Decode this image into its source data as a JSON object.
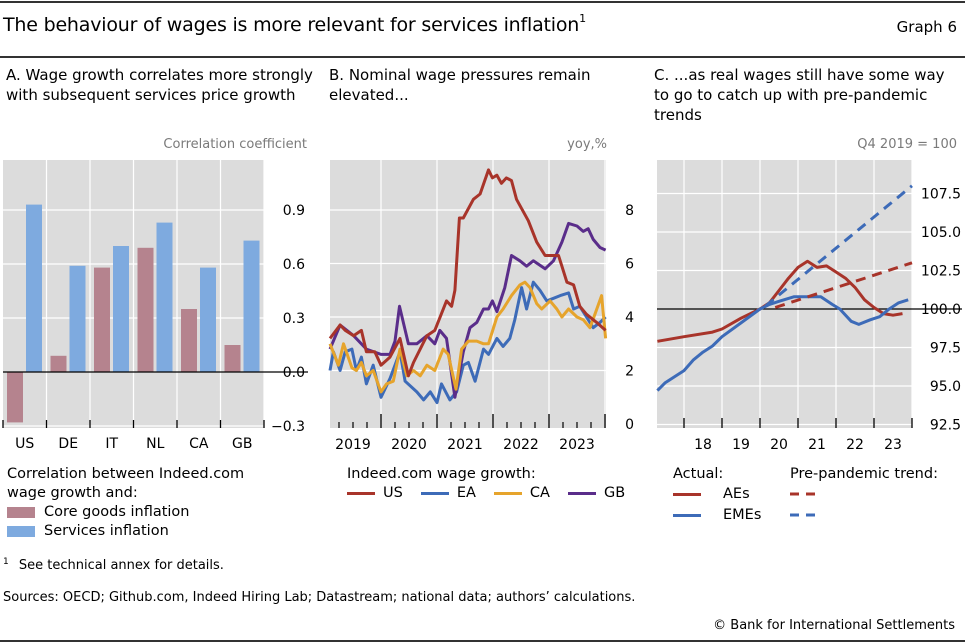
{
  "header": {
    "title": "The behaviour of wages is more relevant for services inflation",
    "title_footnote_mark": "1",
    "graph_number": "Graph 6"
  },
  "panels": {
    "a": {
      "title": "A. Wage growth correlates more strongly with subsequent services price growth",
      "unit": "Correlation coefficient",
      "legend_heading": "Correlation between Indeed.com wage growth and:",
      "legend_items": [
        "Core goods inflation",
        "Services inflation"
      ]
    },
    "b": {
      "title": "B. Nominal wage pressures remain elevated...",
      "unit": "yoy,%",
      "legend_heading": "Indeed.com wage growth:",
      "legend_items": [
        "US",
        "EA",
        "CA",
        "GB"
      ]
    },
    "c": {
      "title": "C. ...as real wages still have some way to go to catch up with pre-pandemic trends",
      "unit": "Q4 2019 = 100",
      "legend_actual_heading": "Actual:",
      "legend_trend_heading": "Pre-pandemic trend:",
      "legend_items": [
        "AEs",
        "EMEs"
      ]
    }
  },
  "footer": {
    "footnote_mark": "1",
    "footnote": "See technical annex for details.",
    "sources": "Sources: OECD; Github.com, Indeed Hiring Lab; Datastream; national data; authors’ calculations.",
    "copyright": "© Bank for International Settlements"
  },
  "colors": {
    "core_goods": "#b5838e",
    "services": "#7eaadf",
    "us": "#a8342a",
    "ea": "#3d6bb8",
    "ca": "#e6a42c",
    "gb": "#5a2d8a",
    "aes": "#a8342a",
    "emes": "#3d6bb8",
    "plot_bg": "#dcdcdc"
  },
  "chart_data": [
    {
      "id": "a",
      "type": "bar",
      "title": "A. Wage growth correlates more strongly with subsequent services price growth",
      "ylabel": "Correlation coefficient",
      "categories": [
        "US",
        "DE",
        "IT",
        "NL",
        "CA",
        "GB"
      ],
      "series": [
        {
          "name": "Core goods inflation",
          "values": [
            -0.28,
            0.09,
            0.58,
            0.69,
            0.35,
            0.15
          ]
        },
        {
          "name": "Services inflation",
          "values": [
            0.93,
            0.59,
            0.7,
            0.83,
            0.58,
            0.73
          ]
        }
      ],
      "ylim": [
        -0.33,
        1.17
      ],
      "yticks": [
        -0.3,
        0.0,
        0.3,
        0.6,
        0.9
      ],
      "ytick_labels": [
        "−0.3",
        "0.0",
        "0.3",
        "0.6",
        "0.9"
      ],
      "grid": true,
      "legend": "bottom"
    },
    {
      "id": "b",
      "type": "line",
      "title": "B. Nominal wage pressures remain elevated...",
      "ylabel": "yoy,%",
      "xlim": [
        2019.0,
        2024.1
      ],
      "ylim": [
        -0.3,
        9.9
      ],
      "yticks": [
        0,
        2,
        4,
        6,
        8
      ],
      "xtick_labels": [
        "2019",
        "2020",
        "2021",
        "2022",
        "2023"
      ],
      "grid": true,
      "legend": "bottom",
      "series": [
        {
          "name": "US",
          "points": [
            [
              2019.09,
              3.2
            ],
            [
              2019.27,
              3.7
            ],
            [
              2019.36,
              3.5
            ],
            [
              2019.51,
              3.3
            ],
            [
              2019.65,
              3.5
            ],
            [
              2019.74,
              2.7
            ],
            [
              2019.89,
              2.7
            ],
            [
              2020.0,
              2.2
            ],
            [
              2020.16,
              2.5
            ],
            [
              2020.34,
              3.2
            ],
            [
              2020.49,
              1.8
            ],
            [
              2020.58,
              2.3
            ],
            [
              2020.82,
              3.3
            ],
            [
              2020.96,
              3.5
            ],
            [
              2021.17,
              4.6
            ],
            [
              2021.26,
              4.4
            ],
            [
              2021.32,
              5.0
            ],
            [
              2021.4,
              7.7
            ],
            [
              2021.47,
              7.7
            ],
            [
              2021.65,
              8.4
            ],
            [
              2021.77,
              8.6
            ],
            [
              2021.92,
              9.5
            ],
            [
              2021.99,
              9.2
            ],
            [
              2022.07,
              9.3
            ],
            [
              2022.15,
              9.0
            ],
            [
              2022.24,
              9.2
            ],
            [
              2022.33,
              9.1
            ],
            [
              2022.42,
              8.4
            ],
            [
              2022.63,
              7.6
            ],
            [
              2022.78,
              6.8
            ],
            [
              2022.93,
              6.3
            ],
            [
              2023.17,
              6.3
            ],
            [
              2023.23,
              5.9
            ],
            [
              2023.32,
              5.3
            ],
            [
              2023.44,
              5.2
            ],
            [
              2023.55,
              4.4
            ],
            [
              2023.67,
              4.1
            ],
            [
              2023.85,
              3.8
            ],
            [
              2024.01,
              3.5
            ]
          ]
        },
        {
          "name": "EA",
          "points": [
            [
              2019.09,
              2.0
            ],
            [
              2019.15,
              2.7
            ],
            [
              2019.27,
              2.0
            ],
            [
              2019.36,
              2.7
            ],
            [
              2019.48,
              2.8
            ],
            [
              2019.56,
              2.0
            ],
            [
              2019.65,
              2.5
            ],
            [
              2019.74,
              1.5
            ],
            [
              2019.86,
              2.2
            ],
            [
              2020.0,
              1.0
            ],
            [
              2020.16,
              1.7
            ],
            [
              2020.34,
              2.7
            ],
            [
              2020.43,
              1.6
            ],
            [
              2020.64,
              1.2
            ],
            [
              2020.76,
              0.9
            ],
            [
              2020.88,
              1.2
            ],
            [
              2021.0,
              0.8
            ],
            [
              2021.08,
              1.5
            ],
            [
              2021.23,
              0.9
            ],
            [
              2021.35,
              1.2
            ],
            [
              2021.47,
              2.2
            ],
            [
              2021.56,
              2.3
            ],
            [
              2021.68,
              1.6
            ],
            [
              2021.83,
              2.8
            ],
            [
              2021.92,
              2.6
            ],
            [
              2022.07,
              3.2
            ],
            [
              2022.18,
              2.9
            ],
            [
              2022.3,
              3.2
            ],
            [
              2022.39,
              3.9
            ],
            [
              2022.51,
              5.1
            ],
            [
              2022.6,
              4.3
            ],
            [
              2022.72,
              5.3
            ],
            [
              2022.84,
              5.0
            ],
            [
              2022.96,
              4.6
            ],
            [
              2023.08,
              4.7
            ],
            [
              2023.2,
              4.8
            ],
            [
              2023.35,
              4.9
            ],
            [
              2023.44,
              4.3
            ],
            [
              2023.55,
              4.4
            ],
            [
              2023.67,
              4.0
            ],
            [
              2023.79,
              3.6
            ],
            [
              2023.91,
              3.8
            ],
            [
              2024.01,
              4.0
            ]
          ]
        },
        {
          "name": "CA",
          "points": [
            [
              2019.09,
              3.0
            ],
            [
              2019.24,
              2.2
            ],
            [
              2019.33,
              3.0
            ],
            [
              2019.48,
              2.1
            ],
            [
              2019.56,
              2.0
            ],
            [
              2019.65,
              2.3
            ],
            [
              2019.74,
              1.8
            ],
            [
              2019.86,
              2.0
            ],
            [
              2020.0,
              1.2
            ],
            [
              2020.1,
              1.5
            ],
            [
              2020.22,
              1.6
            ],
            [
              2020.34,
              2.8
            ],
            [
              2020.46,
              1.8
            ],
            [
              2020.58,
              2.0
            ],
            [
              2020.7,
              1.8
            ],
            [
              2020.82,
              2.2
            ],
            [
              2020.96,
              2.0
            ],
            [
              2021.11,
              2.8
            ],
            [
              2021.2,
              2.6
            ],
            [
              2021.34,
              1.3
            ],
            [
              2021.44,
              2.8
            ],
            [
              2021.56,
              3.1
            ],
            [
              2021.71,
              3.1
            ],
            [
              2021.83,
              3.0
            ],
            [
              2021.92,
              3.0
            ],
            [
              2022.07,
              4.0
            ],
            [
              2022.18,
              4.3
            ],
            [
              2022.33,
              4.8
            ],
            [
              2022.48,
              5.2
            ],
            [
              2022.57,
              5.3
            ],
            [
              2022.66,
              5.1
            ],
            [
              2022.78,
              4.5
            ],
            [
              2022.87,
              4.3
            ],
            [
              2023.02,
              4.6
            ],
            [
              2023.14,
              4.3
            ],
            [
              2023.23,
              4.0
            ],
            [
              2023.35,
              4.3
            ],
            [
              2023.5,
              4.0
            ],
            [
              2023.61,
              3.9
            ],
            [
              2023.73,
              3.6
            ],
            [
              2023.82,
              4.1
            ],
            [
              2023.94,
              4.8
            ],
            [
              2024.01,
              3.2
            ]
          ]
        },
        {
          "name": "GB",
          "points": [
            [
              2019.09,
              2.8
            ],
            [
              2019.27,
              3.7
            ],
            [
              2019.51,
              3.3
            ],
            [
              2019.74,
              2.8
            ],
            [
              2020.0,
              2.6
            ],
            [
              2020.16,
              2.6
            ],
            [
              2020.25,
              3.1
            ],
            [
              2020.33,
              4.4
            ],
            [
              2020.49,
              3.0
            ],
            [
              2020.64,
              3.0
            ],
            [
              2020.82,
              3.3
            ],
            [
              2020.96,
              3.0
            ],
            [
              2021.05,
              3.5
            ],
            [
              2021.17,
              3.2
            ],
            [
              2021.32,
              1.0
            ],
            [
              2021.47,
              2.7
            ],
            [
              2021.59,
              3.6
            ],
            [
              2021.71,
              3.8
            ],
            [
              2021.83,
              4.3
            ],
            [
              2021.92,
              4.3
            ],
            [
              2021.99,
              4.6
            ],
            [
              2022.07,
              4.2
            ],
            [
              2022.21,
              5.1
            ],
            [
              2022.33,
              6.3
            ],
            [
              2022.48,
              6.1
            ],
            [
              2022.6,
              5.9
            ],
            [
              2022.72,
              6.1
            ],
            [
              2022.93,
              5.8
            ],
            [
              2023.08,
              6.1
            ],
            [
              2023.23,
              6.8
            ],
            [
              2023.35,
              7.5
            ],
            [
              2023.5,
              7.4
            ],
            [
              2023.61,
              7.2
            ],
            [
              2023.7,
              7.3
            ],
            [
              2023.79,
              6.9
            ],
            [
              2023.91,
              6.6
            ],
            [
              2024.01,
              6.5
            ]
          ]
        }
      ]
    },
    {
      "id": "c",
      "type": "line",
      "title": "C. ...as real wages still have some way to go to catch up with pre-pandemic trends",
      "ylabel": "Q4 2019 = 100",
      "xlim": [
        2017.3,
        2024.6
      ],
      "ylim": [
        92.0,
        110.0
      ],
      "yticks": [
        92.5,
        95.0,
        97.5,
        100.0,
        102.5,
        105.0,
        107.5
      ],
      "xtick_labels": [
        "18",
        "19",
        "20",
        "21",
        "22",
        "23"
      ],
      "reference_line": 100,
      "grid": true,
      "legend": "bottom",
      "series": [
        {
          "name": "AEs",
          "style": "actual",
          "points": [
            [
              2017.3,
              97.9
            ],
            [
              2018.0,
              98.2
            ],
            [
              2018.75,
              98.5
            ],
            [
              2019.0,
              98.7
            ],
            [
              2019.5,
              99.4
            ],
            [
              2020.0,
              100.0
            ],
            [
              2020.25,
              100.4
            ],
            [
              2020.5,
              101.2
            ],
            [
              2020.75,
              102.0
            ],
            [
              2021.0,
              102.7
            ],
            [
              2021.25,
              103.1
            ],
            [
              2021.5,
              102.7
            ],
            [
              2021.75,
              102.8
            ],
            [
              2022.0,
              102.4
            ],
            [
              2022.25,
              102.0
            ],
            [
              2022.5,
              101.4
            ],
            [
              2022.75,
              100.6
            ],
            [
              2023.0,
              100.1
            ],
            [
              2023.25,
              99.7
            ],
            [
              2023.5,
              99.6
            ],
            [
              2023.75,
              99.7
            ]
          ]
        },
        {
          "name": "EMEs",
          "style": "actual",
          "points": [
            [
              2017.3,
              94.7
            ],
            [
              2017.5,
              95.2
            ],
            [
              2017.75,
              95.6
            ],
            [
              2018.0,
              96.0
            ],
            [
              2018.25,
              96.7
            ],
            [
              2018.5,
              97.2
            ],
            [
              2018.75,
              97.6
            ],
            [
              2019.0,
              98.2
            ],
            [
              2019.5,
              99.1
            ],
            [
              2020.0,
              100.0
            ],
            [
              2020.25,
              100.3
            ],
            [
              2020.5,
              100.5
            ],
            [
              2020.9,
              100.8
            ],
            [
              2021.3,
              100.8
            ],
            [
              2021.6,
              100.8
            ],
            [
              2021.9,
              100.3
            ],
            [
              2022.1,
              100.0
            ],
            [
              2022.4,
              99.2
            ],
            [
              2022.6,
              99.0
            ],
            [
              2022.9,
              99.3
            ],
            [
              2023.15,
              99.5
            ],
            [
              2023.4,
              100.0
            ],
            [
              2023.65,
              100.4
            ],
            [
              2023.9,
              100.6
            ]
          ]
        },
        {
          "name": "AEs",
          "style": "pre-pandemic trend",
          "points": [
            [
              2020.4,
              100.1
            ],
            [
              2024.0,
              103.0
            ]
          ]
        },
        {
          "name": "EMEs",
          "style": "pre-pandemic trend",
          "points": [
            [
              2020.15,
              100.2
            ],
            [
              2024.0,
              108.0
            ]
          ]
        }
      ]
    }
  ]
}
